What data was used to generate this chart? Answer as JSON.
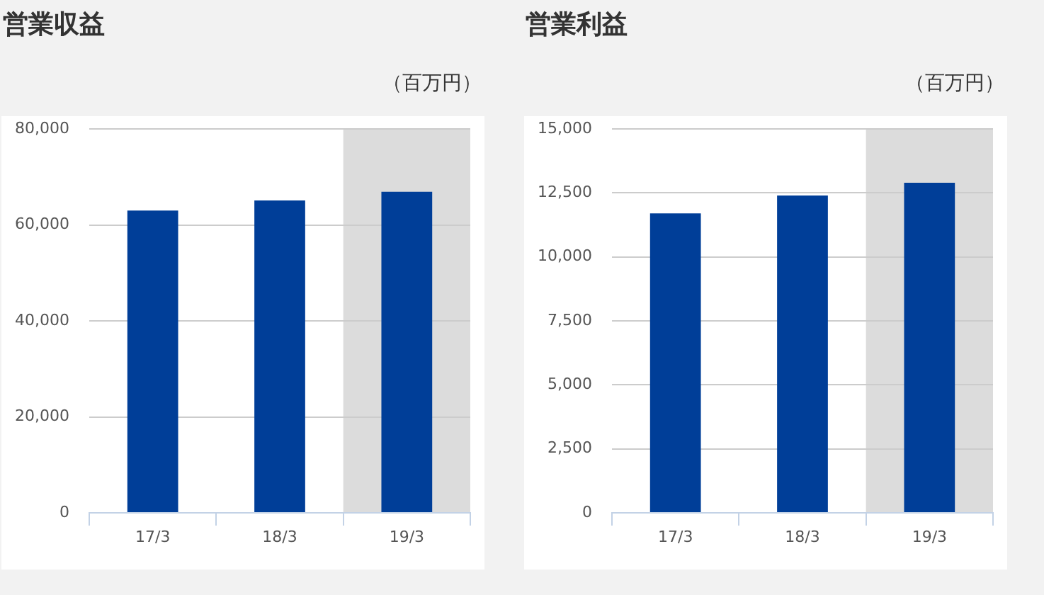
{
  "chart_data": [
    {
      "type": "bar",
      "title": "営業収益",
      "ylabel": "（百万円）",
      "categories": [
        "17/3",
        "18/3",
        "19/3"
      ],
      "values": [
        63000,
        65100,
        66900
      ],
      "color": "#003e98",
      "ylim": [
        0,
        80000
      ],
      "yticks": [
        0,
        {
          "value": 20000,
          "label": "20,000"
        },
        {
          "value": 40000,
          "label": "40,000"
        },
        {
          "value": 60000,
          "label": "60,000"
        },
        {
          "value": 80000,
          "label": "80,000"
        }
      ],
      "grid": "y",
      "bands": [
        {
          "axis": "x",
          "from": "19/3",
          "to": "19/3",
          "color": "#dcdcdc"
        }
      ]
    },
    {
      "type": "bar",
      "title": "営業利益",
      "ylabel": "（百万円）",
      "categories": [
        "17/3",
        "18/3",
        "19/3"
      ],
      "values": [
        11700,
        12400,
        12900
      ],
      "color": "#003e98",
      "ylim": [
        0,
        15000
      ],
      "yticks": [
        0,
        {
          "value": 2500,
          "label": "2,500"
        },
        {
          "value": 5000,
          "label": "5,000"
        },
        {
          "value": 7500,
          "label": "7,500"
        },
        {
          "value": 10000,
          "label": "10,000"
        },
        {
          "value": 12500,
          "label": "12,500"
        },
        {
          "value": 15000,
          "label": "15,000"
        }
      ],
      "grid": "y",
      "bands": [
        {
          "axis": "x",
          "from": "19/3",
          "to": "19/3",
          "color": "#dcdcdc"
        }
      ]
    }
  ]
}
